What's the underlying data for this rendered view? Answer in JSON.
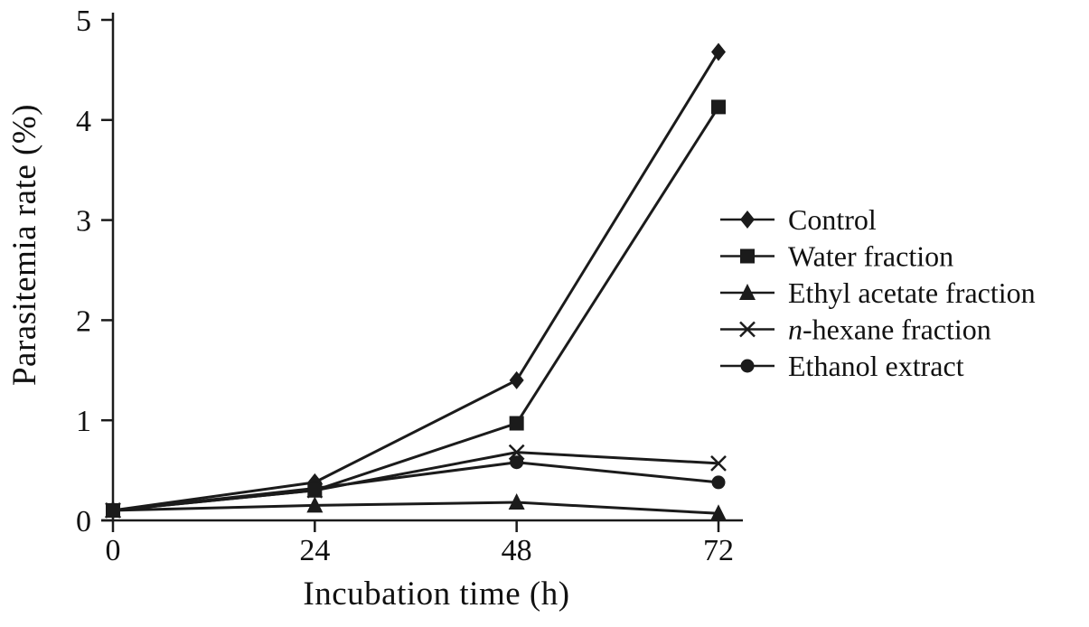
{
  "figure": {
    "background": "#ffffff",
    "ink_color": "#1b1b1b"
  },
  "chart_data": {
    "type": "line",
    "title": "",
    "xlabel": "Incubation time (h)",
    "ylabel": "Parasitemia rate (%)",
    "x": [
      0,
      24,
      48,
      72
    ],
    "xticks": [
      0,
      24,
      48,
      72
    ],
    "yticks": [
      0,
      1,
      2,
      3,
      4,
      5
    ],
    "xlim": [
      0,
      72
    ],
    "ylim": [
      0,
      5
    ],
    "grid": false,
    "legend_position": "right-middle",
    "series": [
      {
        "name": "Control",
        "marker": "diamond",
        "values": [
          0.1,
          0.38,
          1.4,
          4.68
        ]
      },
      {
        "name": "Water fraction",
        "marker": "square",
        "values": [
          0.1,
          0.3,
          0.97,
          4.13
        ]
      },
      {
        "name": "Ethyl acetate fraction",
        "marker": "triangle",
        "values": [
          0.1,
          0.15,
          0.18,
          0.07
        ]
      },
      {
        "name": "n-hexane fraction",
        "marker": "x",
        "values": [
          0.1,
          0.3,
          0.68,
          0.57
        ]
      },
      {
        "name": "Ethanol extract",
        "marker": "circle",
        "values": [
          0.1,
          0.32,
          0.58,
          0.38
        ]
      }
    ]
  }
}
